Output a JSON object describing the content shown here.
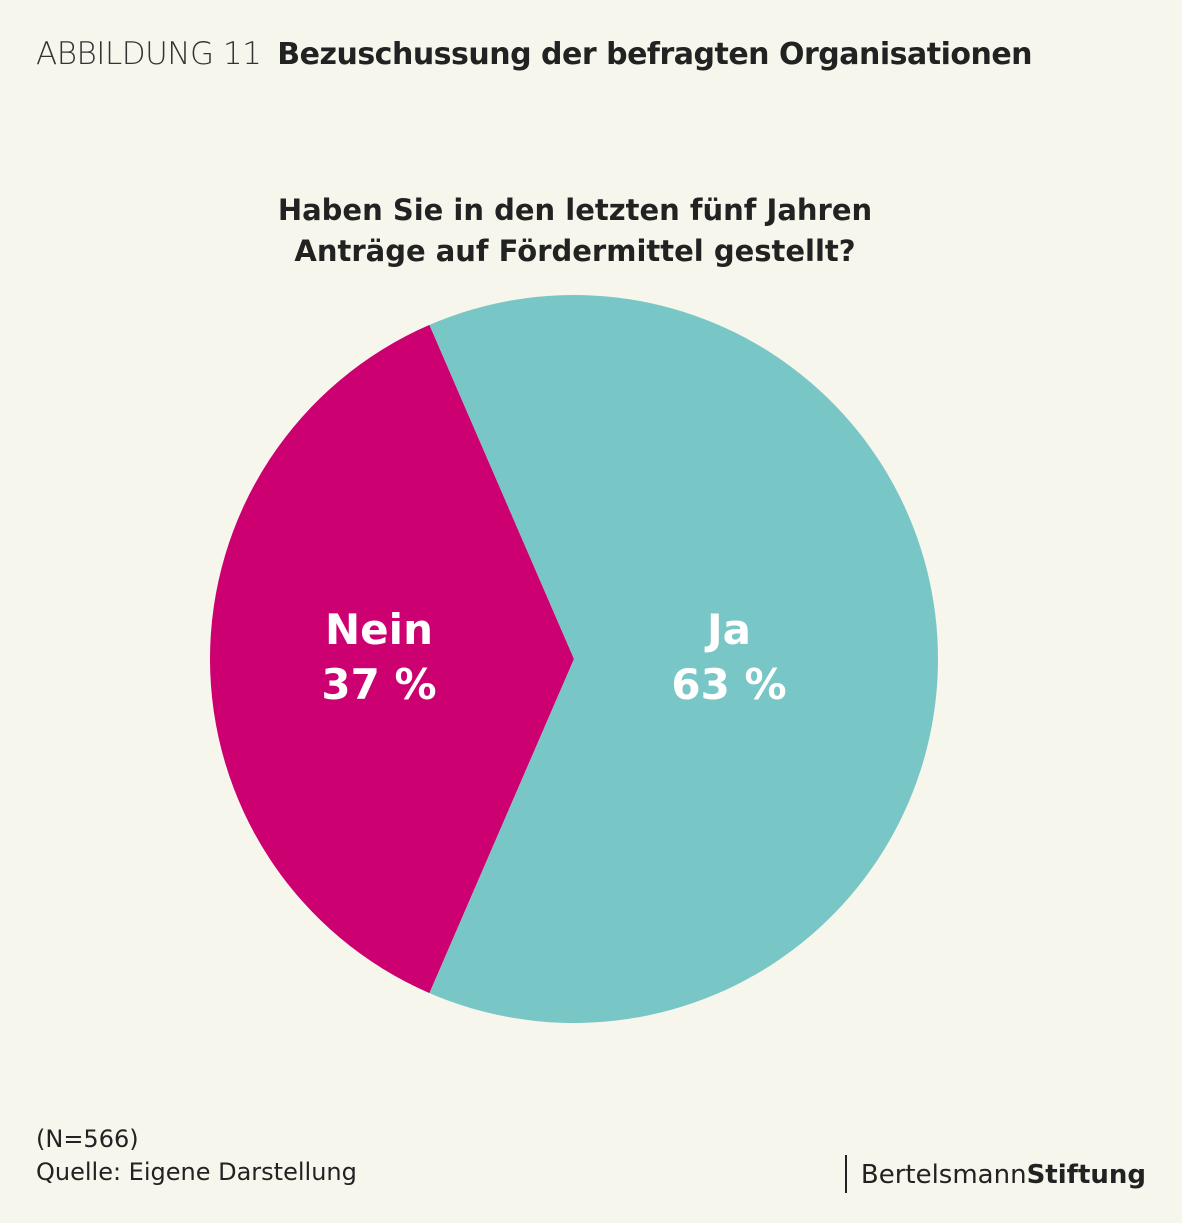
{
  "header": {
    "figure_label": "ABBILDUNG 11",
    "title": "Bezuschussung der befragten Organisationen"
  },
  "chart_data": {
    "type": "pie",
    "title": "Haben Sie in den letzten fünf Jahren Anträge auf Fördermittel gestellt?",
    "title_lines": [
      "Haben Sie in den letzten fünf Jahren",
      "Anträge auf Fördermittel gestellt?"
    ],
    "slices": [
      {
        "label": "Nein",
        "value": 37,
        "value_label": "37 %",
        "color": "#cc0070"
      },
      {
        "label": "Ja",
        "value": 63,
        "value_label": "63 %",
        "color": "#79c6c6"
      }
    ]
  },
  "footer": {
    "note": "(N=566)",
    "source": "Quelle: Eigene Darstellung"
  },
  "logo": {
    "text_regular": "Bertelsmann",
    "text_bold": "Stiftung"
  }
}
